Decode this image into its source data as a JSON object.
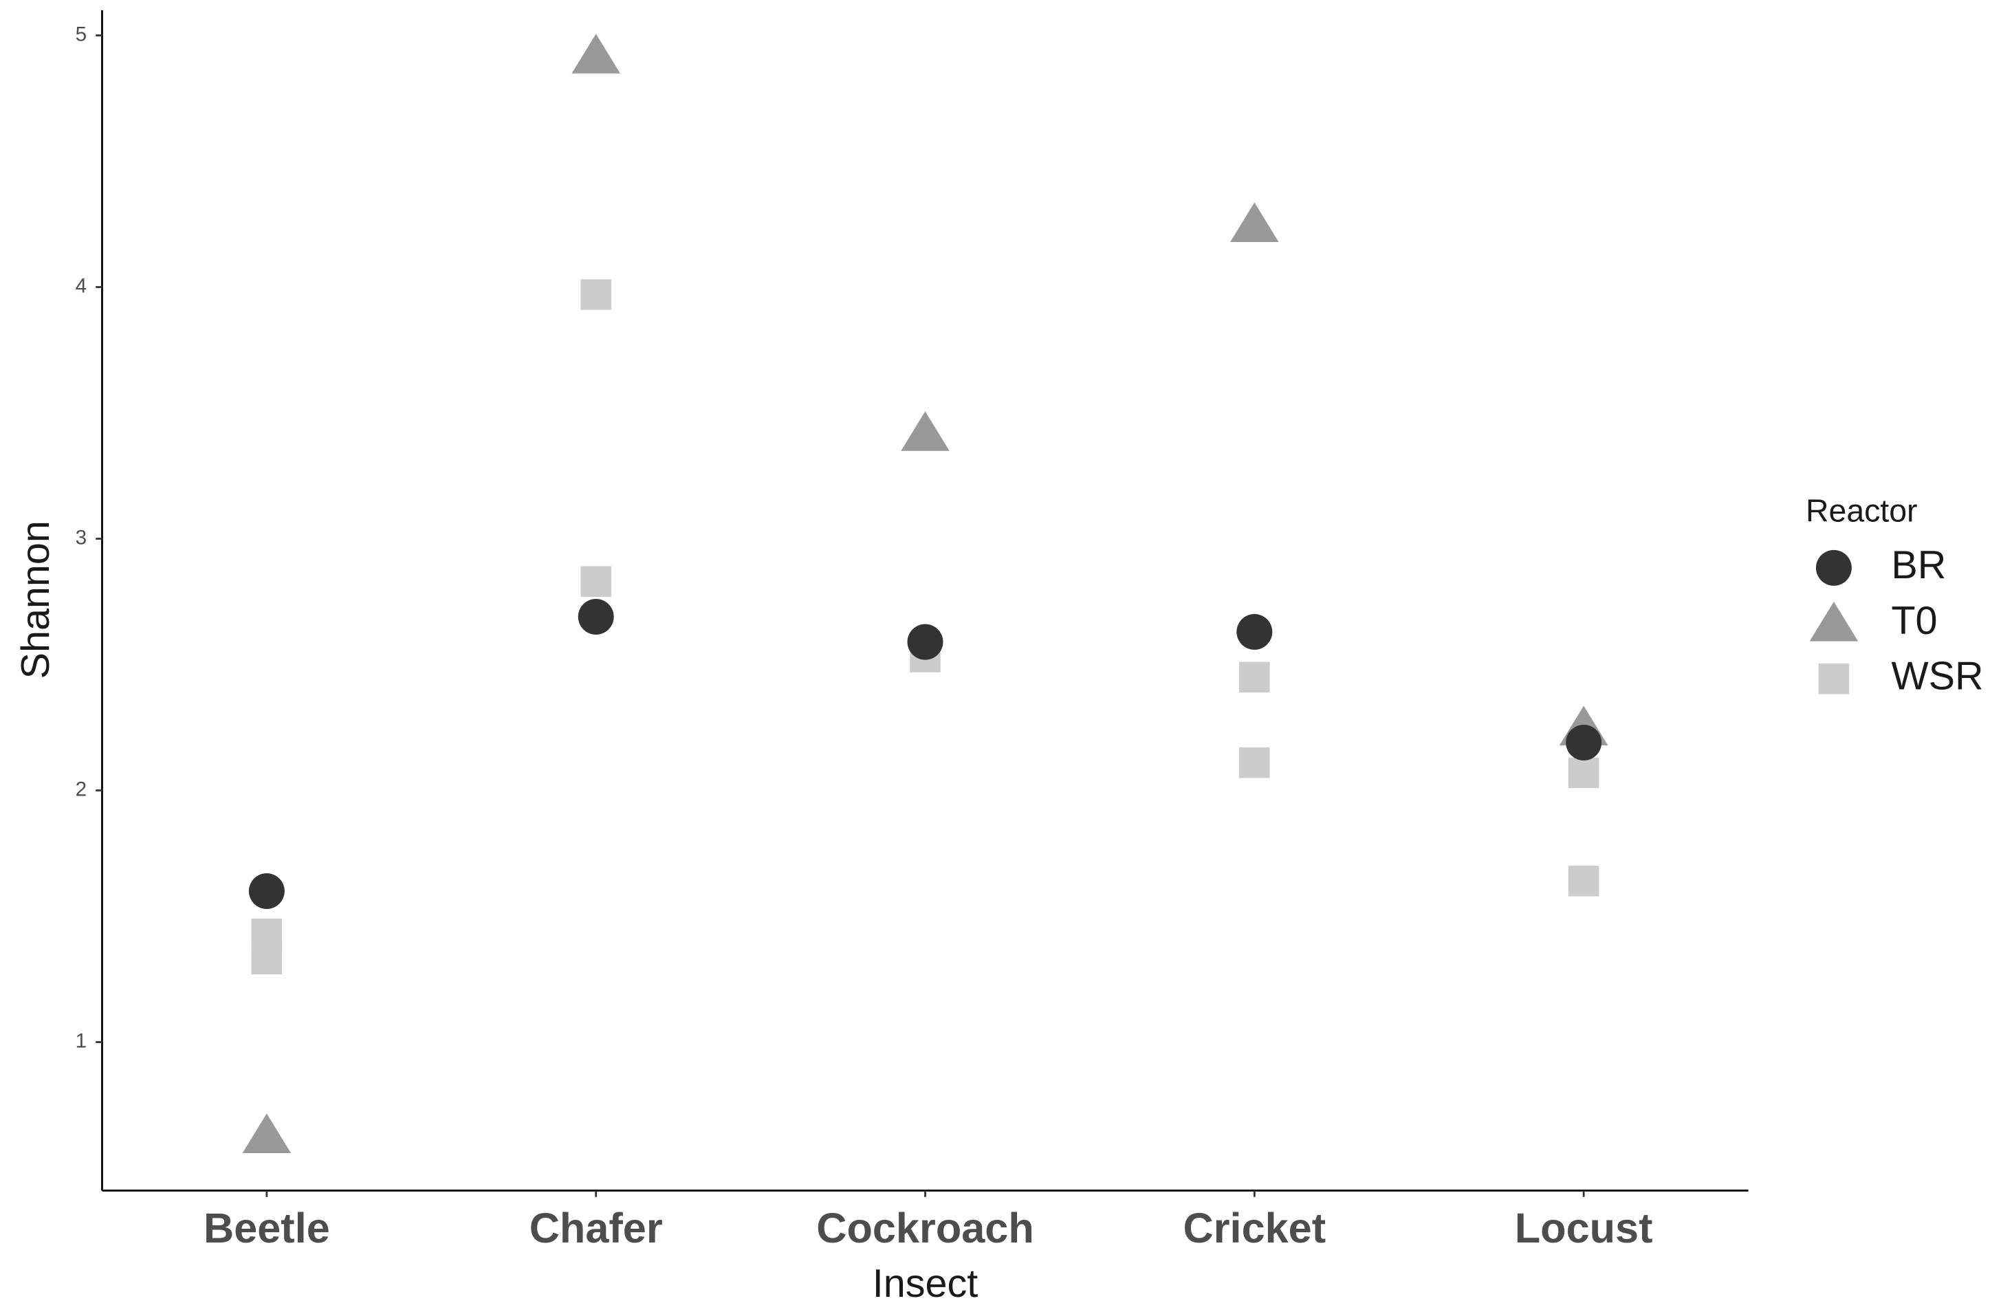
{
  "chart_data": {
    "type": "scatter",
    "x_label": "Insect",
    "y_label": "Shannon",
    "categories": [
      "Beetle",
      "Chafer",
      "Cockroach",
      "Cricket",
      "Locust"
    ],
    "ylim": [
      0.41,
      5.1
    ],
    "yticks": [
      1,
      2,
      3,
      4,
      5
    ],
    "grid": false,
    "legend_title": "Reactor",
    "legend_position": "right",
    "series": [
      {
        "name": "BR",
        "color": "#333333",
        "shape": "circle",
        "values": [
          [
            1.6
          ],
          [
            2.69
          ],
          [
            2.59
          ],
          [
            2.63
          ],
          [
            2.19
          ]
        ]
      },
      {
        "name": "T0",
        "color": "#999999",
        "shape": "triangle",
        "values": [
          [
            0.63
          ],
          [
            4.92
          ],
          [
            3.42
          ],
          [
            4.25
          ],
          [
            2.25
          ]
        ]
      },
      {
        "name": "WSR",
        "color": "#cccccc",
        "shape": "square",
        "values": [
          [
            1.33,
            1.43
          ],
          [
            3.97,
            2.83
          ],
          [
            2.53
          ],
          [
            2.45,
            2.11
          ],
          [
            2.07,
            1.64
          ]
        ]
      }
    ]
  }
}
